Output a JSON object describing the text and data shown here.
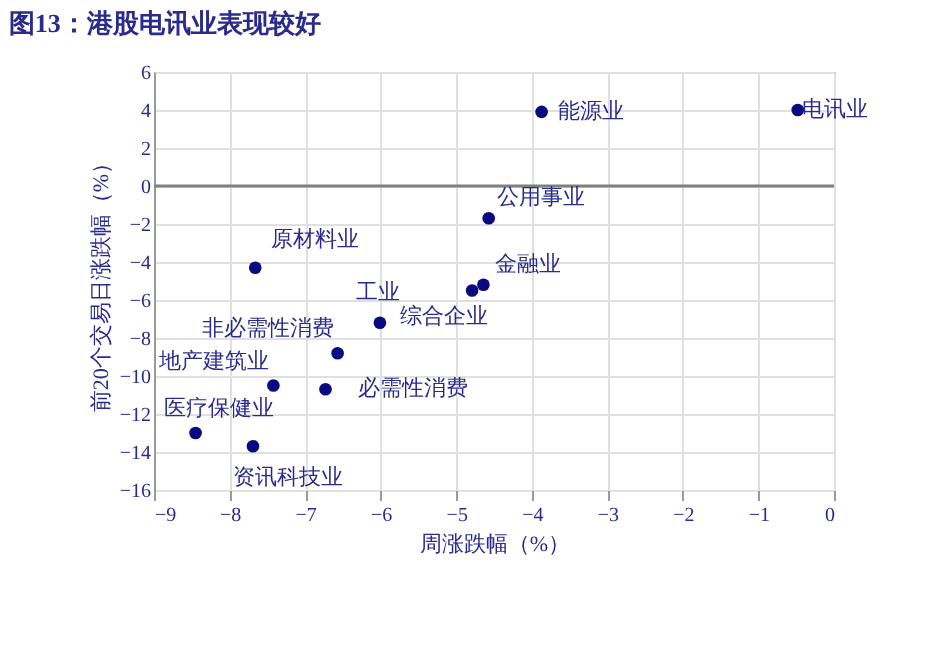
{
  "chart_data": {
    "type": "scatter",
    "title": "图13：港股电讯业表现较好",
    "xlabel": "周涨跌幅（%）",
    "ylabel": "前20个交易日涨跌幅（%）",
    "x": [
      -3.87,
      -0.48,
      -4.57,
      -4.64,
      -4.79,
      -7.66,
      -6.01,
      -6.57,
      -7.42,
      -6.73,
      -8.45,
      -7.69
    ],
    "series": [
      {
        "color": "#0a0a80",
        "values": [
          3.9,
          4.0,
          -1.7,
          -5.2,
          -5.5,
          -4.3,
          -7.2,
          -8.8,
          -10.5,
          -10.7,
          -13.0,
          -13.7
        ]
      }
    ],
    "annotations": [
      {
        "text": "能源业",
        "x": -3.87,
        "y": 3.9
      },
      {
        "text": "电讯业",
        "x": -0.48,
        "y": 4.0
      },
      {
        "text": "公用事业",
        "x": -4.57,
        "y": -1.7
      },
      {
        "text": "金融业",
        "x": -4.64,
        "y": -5.2
      },
      {
        "text": "综合企业",
        "x": -4.79,
        "y": -5.5
      },
      {
        "text": "原材料业",
        "x": -7.66,
        "y": -4.3
      },
      {
        "text": "工业",
        "x": -6.01,
        "y": -7.2
      },
      {
        "text": "非必需性消费",
        "x": -6.57,
        "y": -8.8
      },
      {
        "text": "地产建筑业",
        "x": -7.42,
        "y": -10.5
      },
      {
        "text": "必需性消费",
        "x": -6.73,
        "y": -10.7
      },
      {
        "text": "医疗保健业",
        "x": -8.45,
        "y": -13.0
      },
      {
        "text": "资讯科技业",
        "x": -7.69,
        "y": -13.7
      }
    ],
    "xlim": [
      -9,
      0
    ],
    "xticks": [
      -9,
      -8,
      -7,
      -6,
      -5,
      -4,
      -3,
      -2,
      -1,
      0
    ],
    "ylim": [
      -16,
      6
    ],
    "yticks": [
      -16,
      -14,
      -12,
      -10,
      -8,
      -6,
      -4,
      -2,
      0,
      2,
      4,
      6
    ],
    "ref_lines": [
      {
        "axis": "y",
        "value": 0
      }
    ],
    "grid": true,
    "marker": "circle"
  }
}
